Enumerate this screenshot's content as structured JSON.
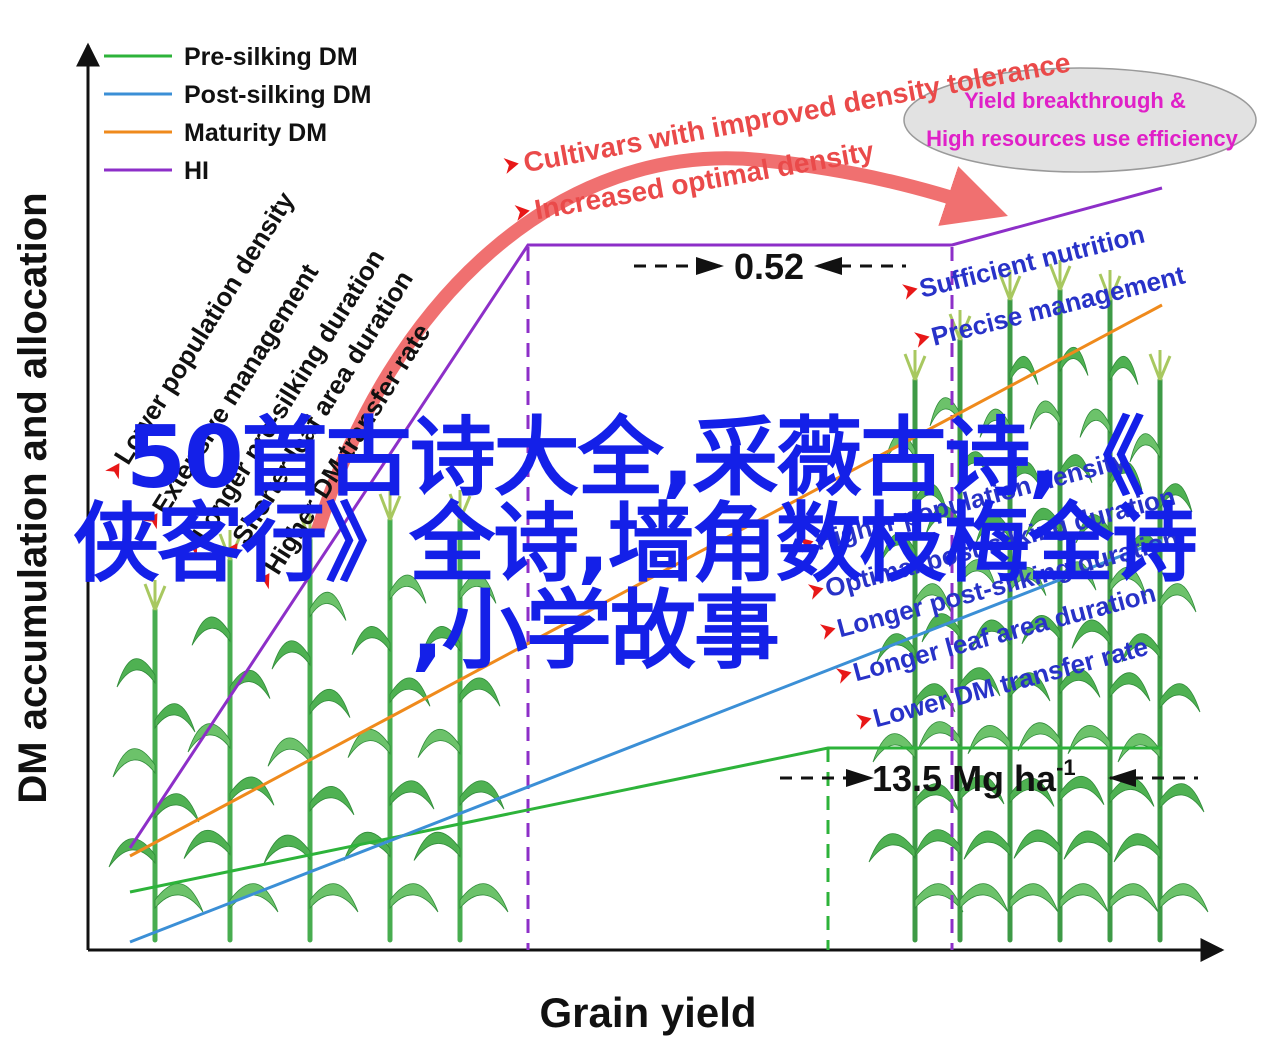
{
  "legend": [
    {
      "label": "Pre-silking DM",
      "color": "#2db33a"
    },
    {
      "label": "Post-silking DM",
      "color": "#3b8fd6"
    },
    {
      "label": "Maturity DM",
      "color": "#ef8a1c"
    },
    {
      "label": "HI",
      "color": "#8d2fc8"
    }
  ],
  "axes": {
    "ylabel": "DM accumulation and allocation",
    "xlabel": "Grain yield"
  },
  "top_annotations": {
    "line1": "Cultivars with improved density tolerance",
    "line2": "Increased optimal density",
    "ellipse_line1": "Yield breakthrough &",
    "ellipse_line2": "High resources use efficiency"
  },
  "left_factors": [
    "Lower population density",
    "Extensive management",
    "Longer pre-silking duration",
    "Shorter leaf area duration",
    "Higher DM transfer rate"
  ],
  "right_factors_top": [
    "Sufficient nutrition",
    "Precise management"
  ],
  "right_factors": [
    "Higher population density",
    "Optimal  post-silking duration",
    "Longer  post-silking duration",
    "Longer leaf area duration",
    "Lower DM transfer rate"
  ],
  "measures": {
    "hi_gap": "0.52",
    "yield_value": "13.5 Mg ha",
    "yield_exp": "-1"
  },
  "overlay_text": {
    "line1": "50首古诗大全,采薇古诗,《",
    "line2": "侠客行》全诗,墙角数枝梅全诗",
    "line3": ",小学故事"
  },
  "colors": {
    "annotation_red": "#ea4a4a",
    "factor_blue": "#2832c8",
    "ellipse_text": "#e020c8",
    "overlay_blue": "#1420e8",
    "plant_green": "#3aa64a"
  }
}
